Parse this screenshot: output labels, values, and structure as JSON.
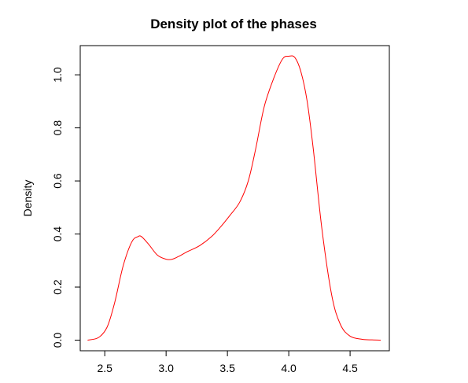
{
  "chart_data": {
    "type": "line",
    "title": "Density plot of the phases",
    "xlabel": "",
    "ylabel": "Density",
    "xlim": [
      2.3,
      4.82
    ],
    "ylim": [
      -0.04,
      1.11
    ],
    "x_ticks": [
      "2.5",
      "3.0",
      "3.5",
      "4.0",
      "4.5"
    ],
    "y_ticks": [
      "0.0",
      "0.2",
      "0.4",
      "0.6",
      "0.8",
      "1.0"
    ],
    "grid": false,
    "legend": "none",
    "series": [
      {
        "color": "#ff0000",
        "x": [
          2.36,
          2.45,
          2.52,
          2.58,
          2.65,
          2.72,
          2.77,
          2.8,
          2.86,
          2.93,
          3.0,
          3.05,
          3.1,
          3.18,
          3.27,
          3.37,
          3.45,
          3.52,
          3.6,
          3.67,
          3.73,
          3.8,
          3.88,
          3.95,
          4.0,
          4.05,
          4.1,
          4.15,
          4.2,
          4.27,
          4.35,
          4.42,
          4.5,
          4.6,
          4.68,
          4.75
        ],
        "y": [
          0.0,
          0.01,
          0.05,
          0.14,
          0.28,
          0.37,
          0.39,
          0.39,
          0.36,
          0.32,
          0.305,
          0.305,
          0.315,
          0.335,
          0.355,
          0.39,
          0.43,
          0.47,
          0.52,
          0.6,
          0.72,
          0.88,
          0.99,
          1.06,
          1.07,
          1.065,
          1.01,
          0.9,
          0.72,
          0.42,
          0.17,
          0.06,
          0.015,
          0.003,
          0.001,
          0.0
        ]
      }
    ]
  }
}
